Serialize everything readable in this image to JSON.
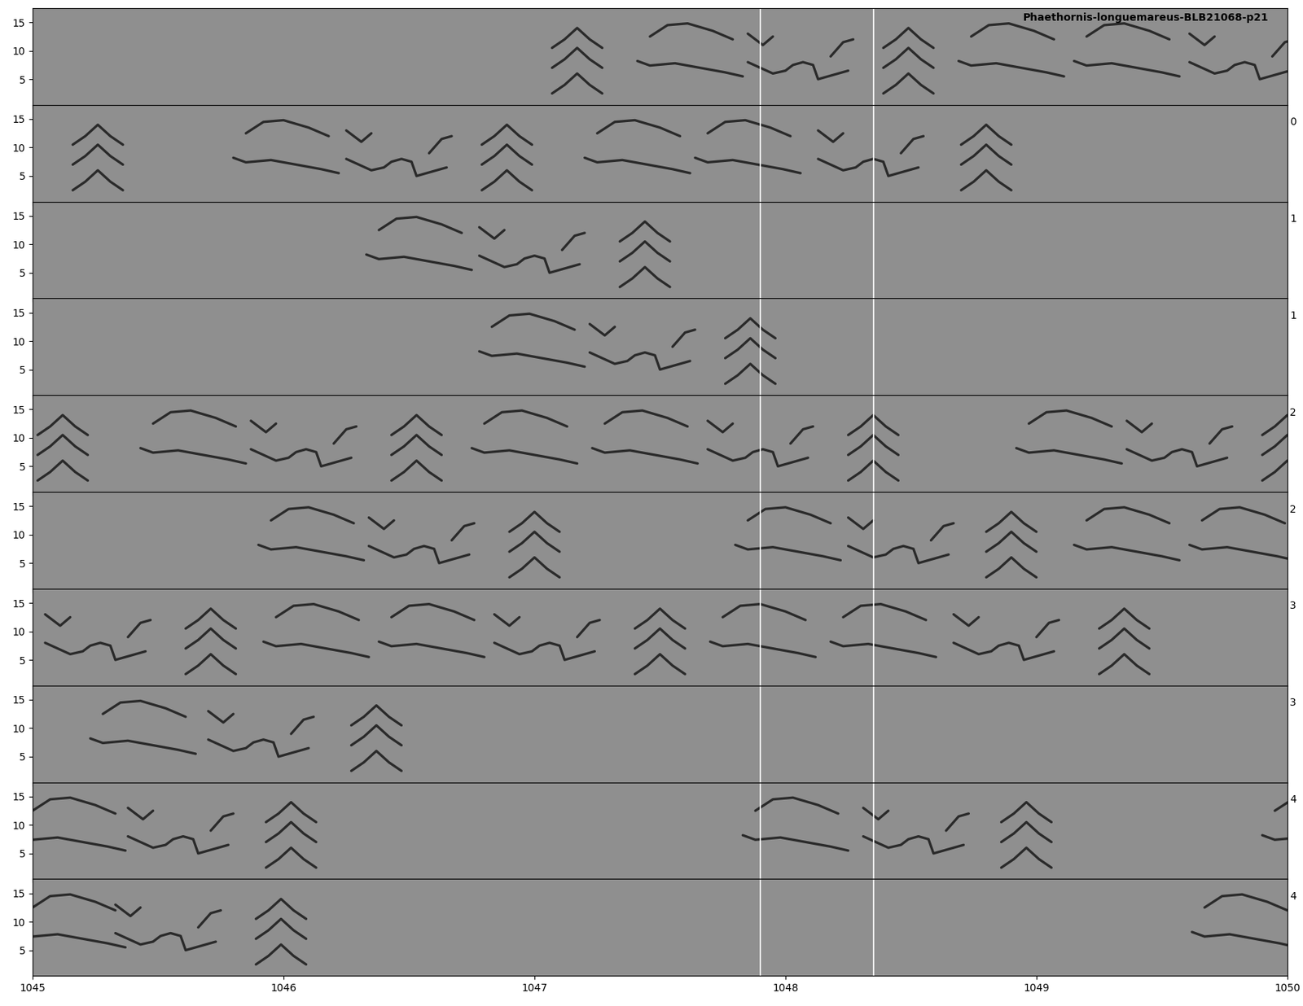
{
  "chart_data": {
    "type": "spectrogram",
    "title": "Phaethornis-longuemareus-BLB21068-p21",
    "xlim": [
      1045,
      1050
    ],
    "xticks": [
      1045,
      1046,
      1047,
      1048,
      1049,
      1050
    ],
    "ylim": [
      0.5,
      17.5
    ],
    "yticks": [
      5,
      10,
      15
    ],
    "color": "#2a2a2a",
    "row_labels": [
      null,
      "0",
      "1",
      "1",
      "2",
      "2",
      "3",
      "3",
      "4",
      "4"
    ],
    "markers": [
      1047.9,
      1048.35
    ],
    "templates": [
      [
        [
          [
            0,
            8.2
          ],
          [
            0.05,
            7.4
          ],
          [
            0.15,
            7.8
          ],
          [
            0.25,
            7.0
          ],
          [
            0.35,
            6.2
          ],
          [
            0.42,
            5.5
          ]
        ],
        [
          [
            0.05,
            12.5
          ],
          [
            0.12,
            14.5
          ],
          [
            0.2,
            14.8
          ],
          [
            0.3,
            13.5
          ],
          [
            0.38,
            12
          ]
        ]
      ],
      [
        [
          [
            0,
            8
          ],
          [
            0.05,
            7
          ],
          [
            0.1,
            6
          ],
          [
            0.15,
            6.5
          ],
          [
            0.18,
            7.5
          ],
          [
            0.22,
            8
          ],
          [
            0.26,
            7.5
          ],
          [
            0.28,
            5
          ],
          [
            0.32,
            5.5
          ],
          [
            0.4,
            6.5
          ]
        ],
        [
          [
            0,
            13
          ],
          [
            0.06,
            11
          ],
          [
            0.1,
            12.5
          ]
        ],
        [
          [
            0.33,
            9
          ],
          [
            0.38,
            11.5
          ],
          [
            0.42,
            12
          ]
        ]
      ],
      [
        [
          [
            0,
            10.5
          ],
          [
            0.05,
            12
          ],
          [
            0.1,
            14
          ],
          [
            0.15,
            12
          ],
          [
            0.2,
            10.5
          ]
        ],
        [
          [
            0,
            7
          ],
          [
            0.05,
            8.5
          ],
          [
            0.1,
            10.5
          ],
          [
            0.15,
            8.5
          ],
          [
            0.2,
            7
          ]
        ],
        [
          [
            0,
            2.5
          ],
          [
            0.05,
            4
          ],
          [
            0.1,
            6
          ],
          [
            0.15,
            4
          ],
          [
            0.2,
            2.5
          ]
        ]
      ]
    ],
    "rows": [
      [
        [
          1047.07,
          2
        ],
        [
          1047.41,
          0
        ],
        [
          1047.85,
          1
        ],
        [
          1048.39,
          2
        ],
        [
          1048.69,
          0
        ],
        [
          1049.15,
          0
        ],
        [
          1049.61,
          1
        ]
      ],
      [
        [
          1045.16,
          2
        ],
        [
          1045.8,
          0
        ],
        [
          1046.25,
          1
        ],
        [
          1046.79,
          2
        ],
        [
          1047.2,
          0
        ],
        [
          1047.64,
          0
        ],
        [
          1048.13,
          1
        ],
        [
          1048.7,
          2
        ]
      ],
      [
        [
          1046.33,
          0
        ],
        [
          1046.78,
          1
        ],
        [
          1047.34,
          2
        ]
      ],
      [
        [
          1046.78,
          0
        ],
        [
          1047.22,
          1
        ],
        [
          1047.76,
          2
        ]
      ],
      [
        [
          1045.02,
          2
        ],
        [
          1045.43,
          0
        ],
        [
          1045.87,
          1
        ],
        [
          1046.43,
          2
        ],
        [
          1046.75,
          0
        ],
        [
          1047.23,
          0
        ],
        [
          1047.69,
          1
        ],
        [
          1048.25,
          2
        ],
        [
          1048.92,
          0
        ],
        [
          1049.36,
          1
        ],
        [
          1049.9,
          2
        ]
      ],
      [
        [
          1045.9,
          0
        ],
        [
          1046.34,
          1
        ],
        [
          1046.9,
          2
        ],
        [
          1047.8,
          0
        ],
        [
          1048.25,
          1
        ],
        [
          1048.8,
          2
        ],
        [
          1049.15,
          0
        ],
        [
          1049.61,
          0
        ]
      ],
      [
        [
          1045.05,
          1
        ],
        [
          1045.61,
          2
        ],
        [
          1045.92,
          0
        ],
        [
          1046.38,
          0
        ],
        [
          1046.84,
          1
        ],
        [
          1047.4,
          2
        ],
        [
          1047.7,
          0
        ],
        [
          1048.18,
          0
        ],
        [
          1048.67,
          1
        ],
        [
          1049.25,
          2
        ]
      ],
      [
        [
          1045.23,
          0
        ],
        [
          1045.7,
          1
        ],
        [
          1046.27,
          2
        ]
      ],
      [
        [
          1044.95,
          0
        ],
        [
          1045.38,
          1
        ],
        [
          1045.93,
          2
        ],
        [
          1047.83,
          0
        ],
        [
          1048.31,
          1
        ],
        [
          1048.86,
          2
        ],
        [
          1049.9,
          0
        ]
      ],
      [
        [
          1044.95,
          0
        ],
        [
          1045.33,
          1
        ],
        [
          1045.89,
          2
        ],
        [
          1049.62,
          0
        ]
      ]
    ]
  }
}
